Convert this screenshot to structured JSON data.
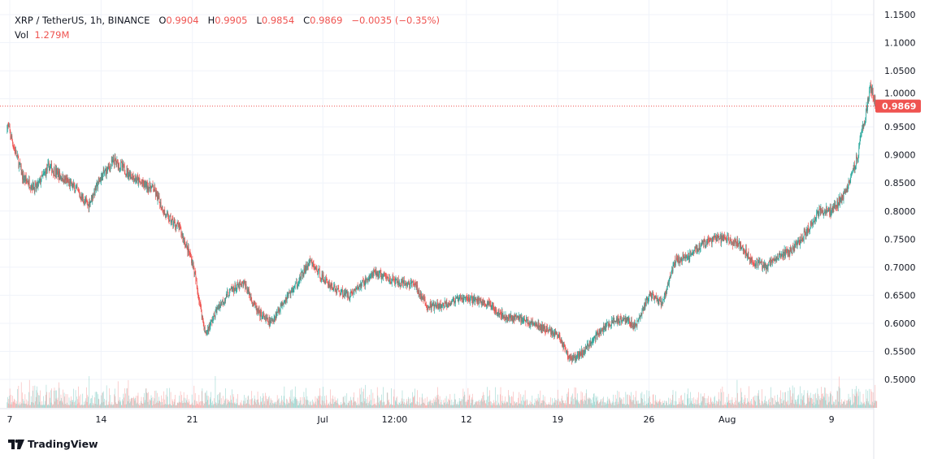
{
  "header": {
    "symbol": "XRP / TetherUS, 1h, BINANCE",
    "o_label": "O",
    "o": "0.9904",
    "h_label": "H",
    "h": "0.9905",
    "l_label": "L",
    "l": "0.9854",
    "c_label": "C",
    "c": "0.9869",
    "change": "−0.0035 (−0.35%)",
    "vol_label": "Vol",
    "vol": "1.279M"
  },
  "brand": "TradingView",
  "colors": {
    "up": "#26a69a",
    "down": "#ef5350",
    "grid": "#f0f3fa"
  },
  "chart_data": {
    "type": "candlestick",
    "interval": "1h",
    "y_ticks": [
      "1.1500",
      "1.1000",
      "1.0500",
      "1.0000",
      "0.9500",
      "0.9000",
      "0.8500",
      "0.8000",
      "0.7500",
      "0.7000",
      "0.6500",
      "0.6000",
      "0.5500",
      "0.5000"
    ],
    "ylim": [
      0.44,
      1.17
    ],
    "x_ticks": [
      {
        "label": "7",
        "day": 7
      },
      {
        "label": "14",
        "day": 14
      },
      {
        "label": "21",
        "day": 21
      },
      {
        "label": "Jul",
        "day": 31
      },
      {
        "label": "12:00",
        "day": 36.5
      },
      {
        "label": "12",
        "day": 42
      },
      {
        "label": "19",
        "day": 49
      },
      {
        "label": "26",
        "day": 56
      },
      {
        "label": "Aug",
        "day": 62
      },
      {
        "label": "9",
        "day": 70
      }
    ],
    "last_price": "0.9869",
    "approx_daily_close": [
      [
        "Jun 7",
        0.94
      ],
      [
        "Jun 8",
        0.86
      ],
      [
        "Jun 9",
        0.84
      ],
      [
        "Jun 10",
        0.88
      ],
      [
        "Jun 11",
        0.86
      ],
      [
        "Jun 12",
        0.84
      ],
      [
        "Jun 13",
        0.81
      ],
      [
        "Jun 14",
        0.86
      ],
      [
        "Jun 15",
        0.89
      ],
      [
        "Jun 16",
        0.87
      ],
      [
        "Jun 17",
        0.85
      ],
      [
        "Jun 18",
        0.84
      ],
      [
        "Jun 19",
        0.79
      ],
      [
        "Jun 20",
        0.77
      ],
      [
        "Jun 21",
        0.71
      ],
      [
        "Jun 22",
        0.58
      ],
      [
        "Jun 23",
        0.63
      ],
      [
        "Jun 24",
        0.66
      ],
      [
        "Jun 25",
        0.67
      ],
      [
        "Jun 26",
        0.62
      ],
      [
        "Jun 27",
        0.6
      ],
      [
        "Jun 28",
        0.64
      ],
      [
        "Jun 29",
        0.67
      ],
      [
        "Jun 30",
        0.71
      ],
      [
        "Jul 1",
        0.68
      ],
      [
        "Jul 2",
        0.66
      ],
      [
        "Jul 3",
        0.65
      ],
      [
        "Jul 4",
        0.67
      ],
      [
        "Jul 5",
        0.69
      ],
      [
        "Jul 6",
        0.68
      ],
      [
        "Jul 7",
        0.67
      ],
      [
        "Jul 8",
        0.67
      ],
      [
        "Jul 9",
        0.63
      ],
      [
        "Jul 10",
        0.63
      ],
      [
        "Jul 11",
        0.64
      ],
      [
        "Jul 12",
        0.645
      ],
      [
        "Jul 13",
        0.64
      ],
      [
        "Jul 14",
        0.63
      ],
      [
        "Jul 15",
        0.61
      ],
      [
        "Jul 16",
        0.61
      ],
      [
        "Jul 17",
        0.6
      ],
      [
        "Jul 18",
        0.59
      ],
      [
        "Jul 19",
        0.58
      ],
      [
        "Jul 20",
        0.535
      ],
      [
        "Jul 21",
        0.55
      ],
      [
        "Jul 22",
        0.58
      ],
      [
        "Jul 23",
        0.6
      ],
      [
        "Jul 24",
        0.61
      ],
      [
        "Jul 25",
        0.595
      ],
      [
        "Jul 26",
        0.65
      ],
      [
        "Jul 27",
        0.635
      ],
      [
        "Jul 28",
        0.71
      ],
      [
        "Jul 29",
        0.72
      ],
      [
        "Jul 30",
        0.74
      ],
      [
        "Jul 31",
        0.75
      ],
      [
        "Aug 1",
        0.75
      ],
      [
        "Aug 2",
        0.74
      ],
      [
        "Aug 3",
        0.71
      ],
      [
        "Aug 4",
        0.7
      ],
      [
        "Aug 5",
        0.72
      ],
      [
        "Aug 6",
        0.73
      ],
      [
        "Aug 7",
        0.76
      ],
      [
        "Aug 8",
        0.8
      ],
      [
        "Aug 9",
        0.8
      ],
      [
        "Aug 10",
        0.83
      ],
      [
        "Aug 11",
        0.9
      ],
      [
        "Aug 12",
        1.02
      ],
      [
        "Aug 12 12:00",
        0.9869
      ]
    ]
  }
}
